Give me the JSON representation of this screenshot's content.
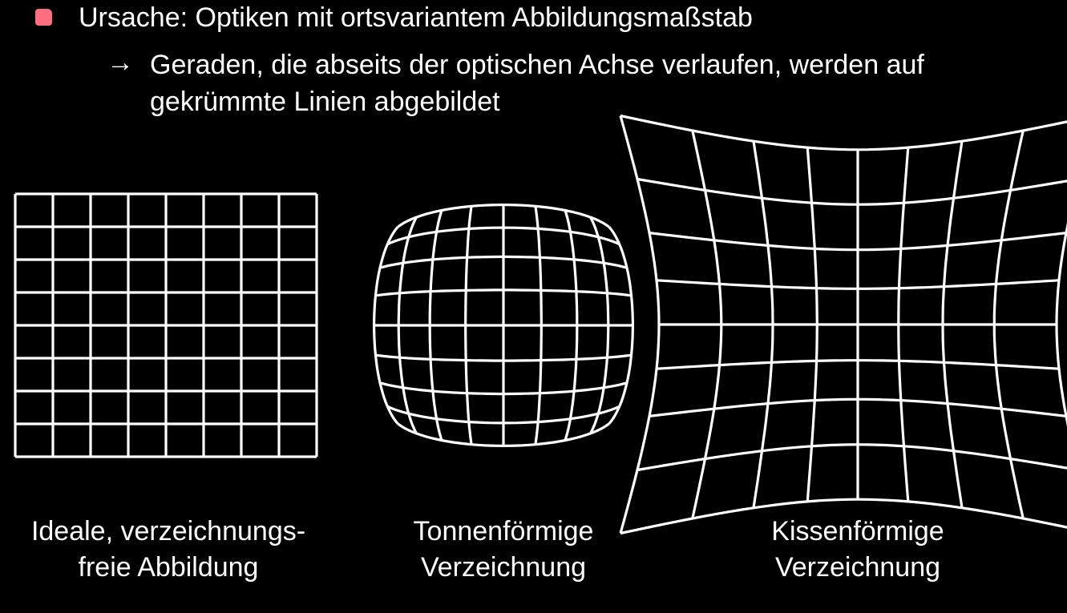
{
  "bullet": {
    "text": "Ursache: Optiken mit ortsvariantem Abbildungsmaßstab",
    "marker_color": "#ff6f80"
  },
  "sub_bullet": {
    "arrow": "→",
    "text": "Geraden, die abseits der optischen Achse verlaufen, werden auf gekrümmte Linien abgebildet"
  },
  "figures": [
    {
      "id": "ideal",
      "caption_line1": "Ideale, verzeichnungs-",
      "caption_line2": "freie Abbildung"
    },
    {
      "id": "barrel",
      "caption_line1": "Tonnenförmige",
      "caption_line2": "Verzeichnung"
    },
    {
      "id": "pincushion",
      "caption_line1": "Kissenförmige",
      "caption_line2": "Verzeichnung"
    }
  ],
  "colors": {
    "background": "#000000",
    "text": "#ffffff",
    "grid_lines": "#ffffff"
  }
}
